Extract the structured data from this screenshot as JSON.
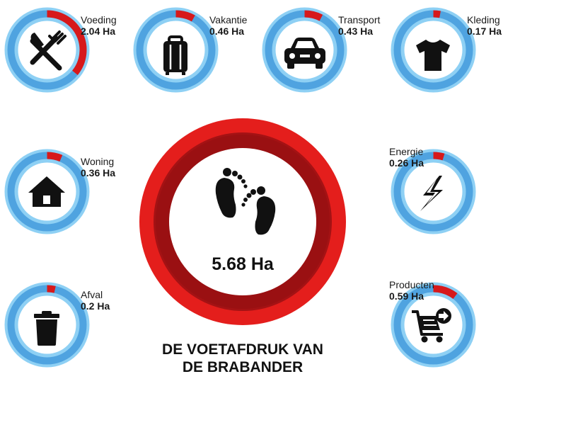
{
  "colors": {
    "ring_outer": "#8ed0f4",
    "ring_track": "#4fa3e0",
    "ring_segment": "#d7191b",
    "center_outer": "#e41e1c",
    "center_inner": "#9a1012",
    "icon": "#111111"
  },
  "total": {
    "value": "5.68 Ha",
    "icon": "footprints-icon"
  },
  "title": {
    "line1": "DE VOETAFDRUK VAN",
    "line2": "DE BRABANDER"
  },
  "categories": [
    {
      "key": "voeding",
      "name": "Voeding",
      "value": "2.04 Ha",
      "hectares": 2.04,
      "icon": "fork-knife-icon"
    },
    {
      "key": "vakantie",
      "name": "Vakantie",
      "value": "0.46 Ha",
      "hectares": 0.46,
      "icon": "suitcase-icon"
    },
    {
      "key": "transport",
      "name": "Transport",
      "value": "0.43 Ha",
      "hectares": 0.43,
      "icon": "car-icon"
    },
    {
      "key": "kleding",
      "name": "Kleding",
      "value": "0.17 Ha",
      "hectares": 0.17,
      "icon": "tshirt-icon"
    },
    {
      "key": "woning",
      "name": "Woning",
      "value": "0.36 Ha",
      "hectares": 0.36,
      "icon": "house-icon"
    },
    {
      "key": "energie",
      "name": "Energie",
      "value": "0.26 Ha",
      "hectares": 0.26,
      "icon": "lightning-icon"
    },
    {
      "key": "afval",
      "name": "Afval",
      "value": "0.2 Ha",
      "hectares": 0.2,
      "icon": "trash-bin-icon"
    },
    {
      "key": "producten",
      "name": "Producten",
      "value": "0.59 Ha",
      "hectares": 0.59,
      "icon": "shopping-cart-icon"
    }
  ]
}
